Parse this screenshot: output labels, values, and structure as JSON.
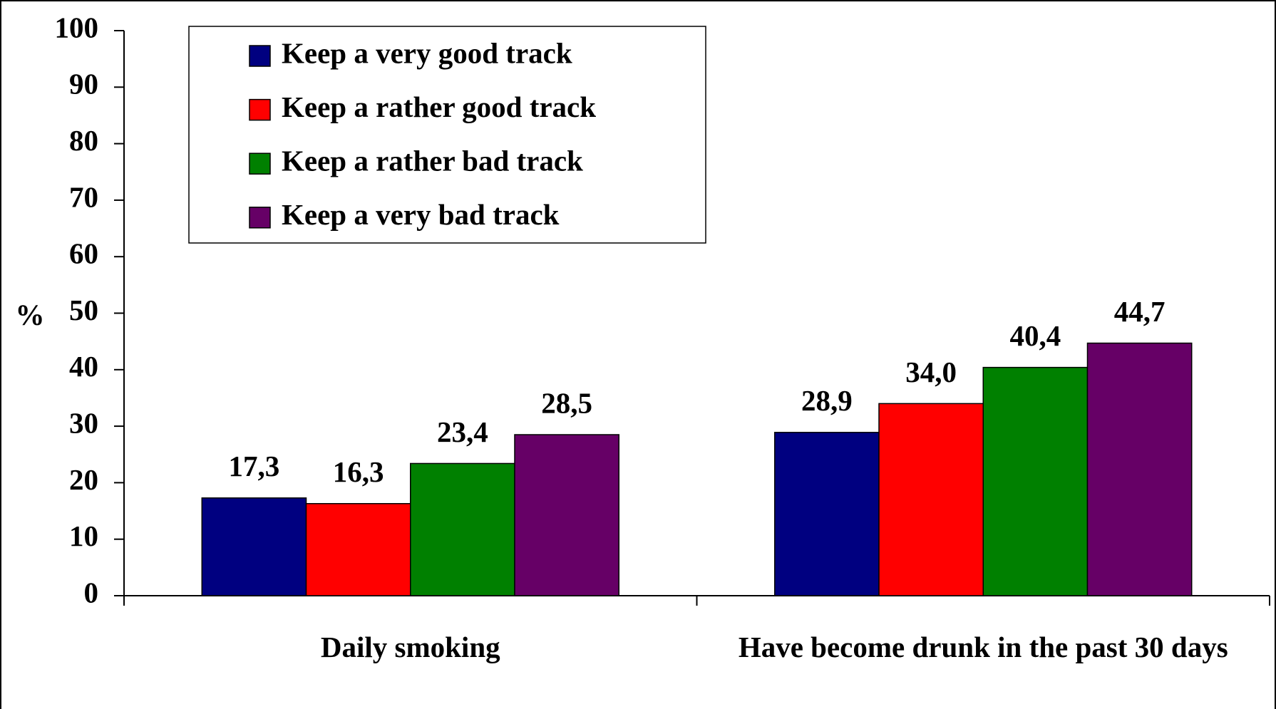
{
  "chart_data": {
    "type": "bar",
    "y_label": "%",
    "categories": [
      "Daily smoking",
      "Have become drunk in the past 30 days"
    ],
    "series": [
      {
        "name": "Keep a very good track",
        "color": "#000080",
        "values": [
          17.3,
          28.9
        ],
        "value_labels": [
          "17,3",
          "28,9"
        ]
      },
      {
        "name": "Keep a rather good track",
        "color": "#ff0000",
        "values": [
          16.3,
          34.0
        ],
        "value_labels": [
          "16,3",
          "34,0"
        ]
      },
      {
        "name": "Keep a rather bad track",
        "color": "#008000",
        "values": [
          23.4,
          40.4
        ],
        "value_labels": [
          "23,4",
          "40,4"
        ]
      },
      {
        "name": "Keep a very bad track",
        "color": "#660066",
        "values": [
          28.5,
          44.7
        ],
        "value_labels": [
          "28,5",
          "44,7"
        ]
      }
    ],
    "ylim": [
      0,
      100
    ],
    "yticks": [
      0,
      10,
      20,
      30,
      40,
      50,
      60,
      70,
      80,
      90,
      100
    ],
    "grid": false,
    "legend": "top-left"
  }
}
